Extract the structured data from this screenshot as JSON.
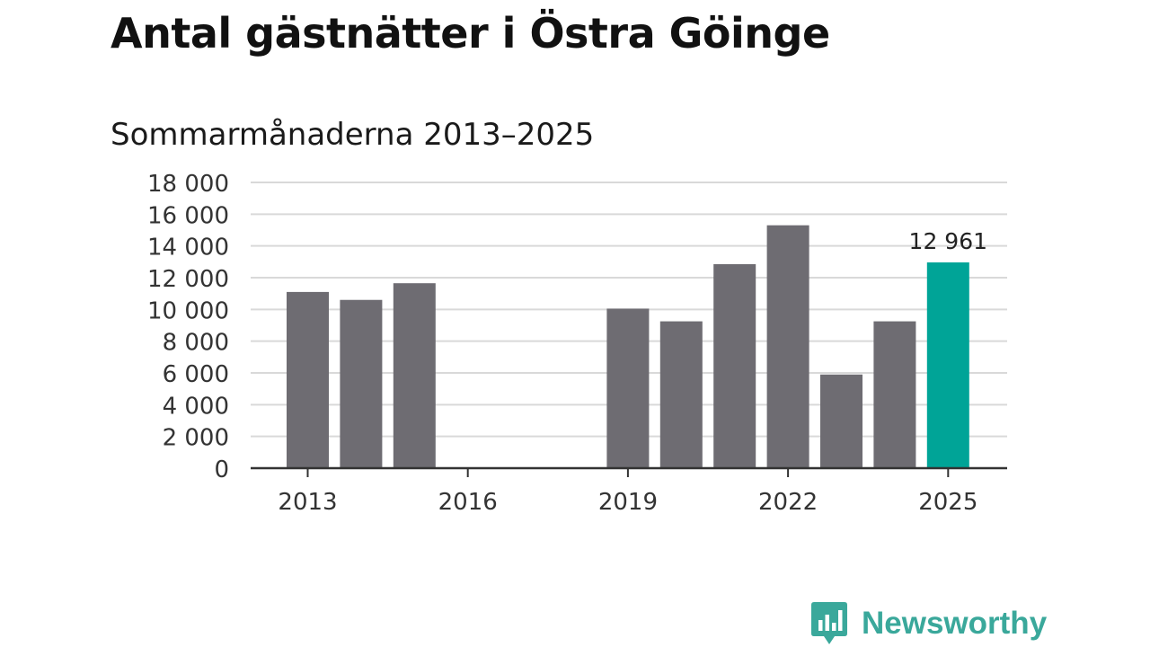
{
  "title": "Antal gästnätter i Östra Göinge",
  "subtitle": "Sommarmånaderna 2013–2025",
  "brand": "Newsworthy",
  "colors": {
    "bar": "#6e6c72",
    "highlight": "#00a497",
    "grid": "#d9d9d9",
    "axis": "#333333",
    "brand": "#3aa89b"
  },
  "chart_data": {
    "type": "bar",
    "title": "Antal gästnätter i Östra Göinge",
    "subtitle": "Sommarmånaderna 2013–2025",
    "xlabel": "",
    "ylabel": "",
    "x": [
      2013,
      2014,
      2015,
      2016,
      2017,
      2018,
      2019,
      2020,
      2021,
      2022,
      2023,
      2024,
      2025
    ],
    "values": [
      11100,
      10600,
      11650,
      null,
      null,
      null,
      10050,
      9250,
      12850,
      15300,
      5900,
      9250,
      12961
    ],
    "highlight_x": 2025,
    "annotations": [
      {
        "x": 2025,
        "text": "12 961"
      }
    ],
    "ylim": [
      0,
      18000
    ],
    "y_ticks": [
      0,
      2000,
      4000,
      6000,
      8000,
      10000,
      12000,
      14000,
      16000,
      18000
    ],
    "y_tick_labels": [
      "0",
      "2 000",
      "4 000",
      "6 000",
      "8 000",
      "10 000",
      "12 000",
      "14 000",
      "16 000",
      "18 000"
    ],
    "x_ticks": [
      2013,
      2016,
      2019,
      2022,
      2025
    ],
    "x_tick_labels": [
      "2013",
      "2016",
      "2019",
      "2022",
      "2025"
    ],
    "grid": true,
    "legend": false
  }
}
